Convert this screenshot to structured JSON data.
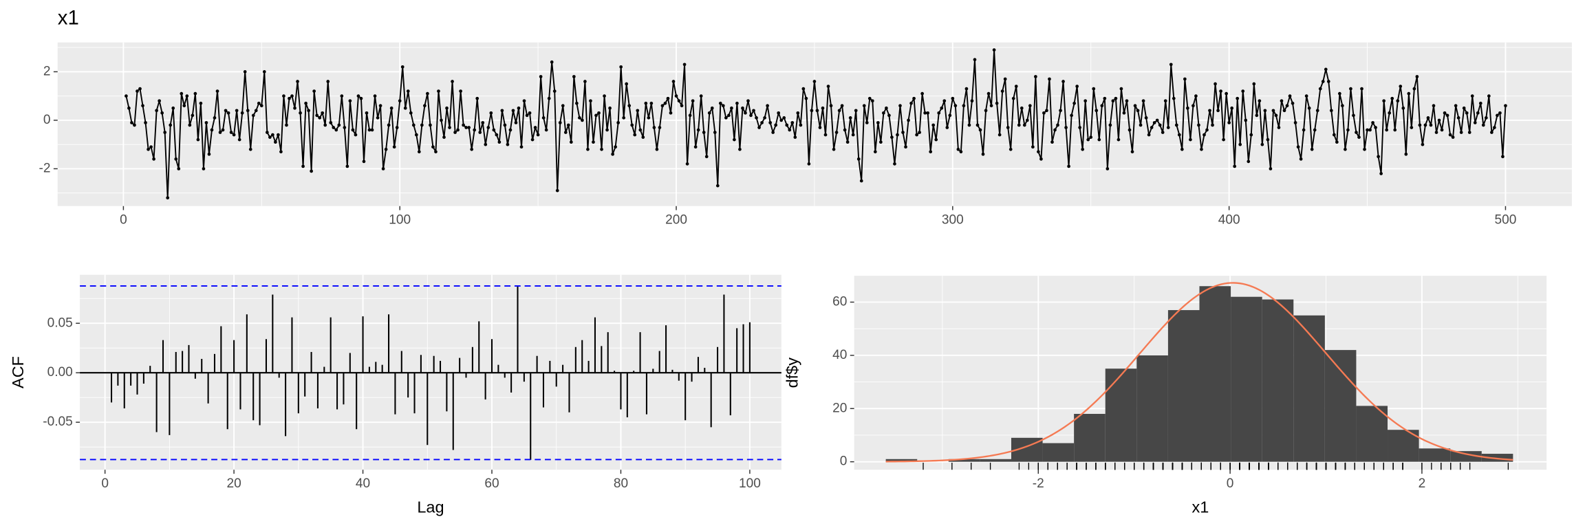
{
  "chart_data": [
    {
      "type": "line",
      "title": "x1",
      "color": "#000000",
      "panel_color": "#ebebeb",
      "grid": true,
      "x": [
        1,
        2,
        3,
        4,
        5,
        6,
        7,
        8,
        9,
        10,
        11,
        12,
        13,
        14,
        15,
        16,
        17,
        18,
        19,
        20,
        21,
        22,
        23,
        24,
        25,
        26,
        27,
        28,
        29,
        30,
        31,
        32,
        33,
        34,
        35,
        36,
        37,
        38,
        39,
        40,
        41,
        42,
        43,
        44,
        45,
        46,
        47,
        48,
        49,
        50,
        51,
        52,
        53,
        54,
        55,
        56,
        57,
        58,
        59,
        60,
        61,
        62,
        63,
        64,
        65,
        66,
        67,
        68,
        69,
        70,
        71,
        72,
        73,
        74,
        75,
        76,
        77,
        78,
        79,
        80,
        81,
        82,
        83,
        84,
        85,
        86,
        87,
        88,
        89,
        90,
        91,
        92,
        93,
        94,
        95,
        96,
        97,
        98,
        99,
        100,
        101,
        102,
        103,
        104,
        105,
        106,
        107,
        108,
        109,
        110,
        111,
        112,
        113,
        114,
        115,
        116,
        117,
        118,
        119,
        120,
        121,
        122,
        123,
        124,
        125,
        126,
        127,
        128,
        129,
        130,
        131,
        132,
        133,
        134,
        135,
        136,
        137,
        138,
        139,
        140,
        141,
        142,
        143,
        144,
        145,
        146,
        147,
        148,
        149,
        150,
        151,
        152,
        153,
        154,
        155,
        156,
        157,
        158,
        159,
        160,
        161,
        162,
        163,
        164,
        165,
        166,
        167,
        168,
        169,
        170,
        171,
        172,
        173,
        174,
        175,
        176,
        177,
        178,
        179,
        180,
        181,
        182,
        183,
        184,
        185,
        186,
        187,
        188,
        189,
        190,
        191,
        192,
        193,
        194,
        195,
        196,
        197,
        198,
        199,
        200,
        201,
        202,
        203,
        204,
        205,
        206,
        207,
        208,
        209,
        210,
        211,
        212,
        213,
        214,
        215,
        216,
        217,
        218,
        219,
        220,
        221,
        222,
        223,
        224,
        225,
        226,
        227,
        228,
        229,
        230,
        231,
        232,
        233,
        234,
        235,
        236,
        237,
        238,
        239,
        240,
        241,
        242,
        243,
        244,
        245,
        246,
        247,
        248,
        249,
        250,
        251,
        252,
        253,
        254,
        255,
        256,
        257,
        258,
        259,
        260,
        261,
        262,
        263,
        264,
        265,
        266,
        267,
        268,
        269,
        270,
        271,
        272,
        273,
        274,
        275,
        276,
        277,
        278,
        279,
        280,
        281,
        282,
        283,
        284,
        285,
        286,
        287,
        288,
        289,
        290,
        291,
        292,
        293,
        294,
        295,
        296,
        297,
        298,
        299,
        300,
        301,
        302,
        303,
        304,
        305,
        306,
        307,
        308,
        309,
        310,
        311,
        312,
        313,
        314,
        315,
        316,
        317,
        318,
        319,
        320,
        321,
        322,
        323,
        324,
        325,
        326,
        327,
        328,
        329,
        330,
        331,
        332,
        333,
        334,
        335,
        336,
        337,
        338,
        339,
        340,
        341,
        342,
        343,
        344,
        345,
        346,
        347,
        348,
        349,
        350,
        351,
        352,
        353,
        354,
        355,
        356,
        357,
        358,
        359,
        360,
        361,
        362,
        363,
        364,
        365,
        366,
        367,
        368,
        369,
        370,
        371,
        372,
        373,
        374,
        375,
        376,
        377,
        378,
        379,
        380,
        381,
        382,
        383,
        384,
        385,
        386,
        387,
        388,
        389,
        390,
        391,
        392,
        393,
        394,
        395,
        396,
        397,
        398,
        399,
        400,
        401,
        402,
        403,
        404,
        405,
        406,
        407,
        408,
        409,
        410,
        411,
        412,
        413,
        414,
        415,
        416,
        417,
        418,
        419,
        420,
        421,
        422,
        423,
        424,
        425,
        426,
        427,
        428,
        429,
        430,
        431,
        432,
        433,
        434,
        435,
        436,
        437,
        438,
        439,
        440,
        441,
        442,
        443,
        444,
        445,
        446,
        447,
        448,
        449,
        450,
        451,
        452,
        453,
        454,
        455,
        456,
        457,
        458,
        459,
        460,
        461,
        462,
        463,
        464,
        465,
        466,
        467,
        468,
        469,
        470,
        471,
        472,
        473,
        474,
        475,
        476,
        477,
        478,
        479,
        480,
        481,
        482,
        483,
        484,
        485,
        486,
        487,
        488,
        489,
        490,
        491,
        492,
        493,
        494,
        495,
        496,
        497,
        498,
        499,
        500
      ],
      "values": [
        1.0,
        0.5,
        -0.1,
        -0.2,
        1.2,
        1.3,
        0.6,
        -0.1,
        -1.2,
        -1.1,
        -1.6,
        0.4,
        0.8,
        0.3,
        -0.5,
        -3.2,
        -0.2,
        0.5,
        -1.6,
        -2.0,
        1.1,
        0.6,
        1.0,
        -0.2,
        0.2,
        1.1,
        -0.8,
        0.7,
        -2.0,
        -0.1,
        -1.4,
        -0.4,
        0.1,
        1.2,
        -0.5,
        -0.4,
        0.4,
        0.3,
        -0.5,
        -0.6,
        0.4,
        -0.8,
        0.3,
        2.0,
        0.4,
        -1.2,
        0.2,
        0.4,
        0.7,
        0.6,
        2.0,
        -0.5,
        -0.7,
        -0.6,
        -0.9,
        -0.6,
        -1.3,
        1.0,
        -0.2,
        0.9,
        1.0,
        0.5,
        1.6,
        0.3,
        -1.9,
        0.7,
        0.4,
        -2.1,
        1.2,
        0.2,
        0.1,
        0.3,
        -0.2,
        1.6,
        -0.1,
        -0.3,
        -0.4,
        -0.2,
        1.0,
        -0.3,
        -1.9,
        0.8,
        -0.4,
        -0.6,
        1.0,
        0.9,
        -1.7,
        0.3,
        -0.4,
        -0.4,
        1.0,
        0.1,
        0.6,
        -2.0,
        -1.2,
        -0.2,
        0.5,
        -1.1,
        -0.3,
        0.8,
        2.2,
        0.5,
        1.2,
        0.3,
        -0.2,
        -0.6,
        -1.3,
        -0.2,
        0.6,
        1.1,
        -0.2,
        -1.1,
        -1.3,
        1.2,
        0.0,
        -0.7,
        0.5,
        -0.3,
        1.6,
        -0.5,
        -0.4,
        1.2,
        -0.2,
        -0.3,
        -0.3,
        -1.2,
        -0.4,
        0.9,
        -0.5,
        -0.1,
        -1.0,
        -0.3,
        0.3,
        -0.4,
        -0.6,
        -0.9,
        0.4,
        -0.2,
        -1.0,
        -0.4,
        0.4,
        -0.1,
        0.5,
        -1.1,
        0.8,
        0.2,
        0.3,
        -0.8,
        -0.3,
        -0.6,
        1.8,
        0.1,
        -0.4,
        0.9,
        2.4,
        1.2,
        -2.9,
        -0.1,
        0.6,
        -0.5,
        -0.2,
        -0.9,
        1.8,
        0.7,
        0.1,
        0.0,
        1.6,
        -1.2,
        0.8,
        -0.9,
        0.2,
        0.3,
        -1.2,
        1.0,
        -0.4,
        0.5,
        -1.4,
        -1.1,
        -0.1,
        2.2,
        0.1,
        1.5,
        0.6,
        -0.2,
        -0.6,
        0.4,
        -0.4,
        -0.7,
        0.7,
        0.1,
        0.7,
        -0.3,
        -1.2,
        -0.3,
        0.6,
        0.7,
        0.9,
        0.3,
        1.6,
        1.0,
        0.8,
        0.6,
        2.3,
        -1.8,
        0.2,
        0.8,
        -1.1,
        -0.4,
        1.0,
        -0.5,
        -1.5,
        0.3,
        0.5,
        -0.5,
        -2.7,
        0.7,
        0.6,
        0.1,
        0.2,
        0.5,
        -0.8,
        0.7,
        -1.2,
        0.5,
        0.3,
        0.8,
        0.2,
        0.4,
        0.1,
        -0.3,
        -0.1,
        0.1,
        0.6,
        -0.1,
        -0.5,
        -0.2,
        0.3,
        0.0,
        0.1,
        -0.2,
        -0.4,
        -0.1,
        -0.7,
        0.3,
        -0.2,
        1.3,
        0.9,
        -1.8,
        0.4,
        1.6,
        0.4,
        -0.3,
        0.5,
        -0.6,
        1.4,
        0.6,
        -1.2,
        -0.5,
        0.4,
        0.6,
        -0.4,
        -0.9,
        0.1,
        -0.6,
        0.4,
        -1.6,
        -2.5,
        0.6,
        -0.1,
        0.9,
        0.8,
        -1.3,
        -0.1,
        -0.9,
        0.3,
        0.5,
        0.2,
        -0.7,
        -1.8,
        -0.6,
        0.6,
        -0.5,
        -1.1,
        0.0,
        0.7,
        0.9,
        -0.6,
        -0.5,
        1.1,
        0.3,
        0.3,
        -1.3,
        -0.2,
        -0.8,
        0.3,
        0.5,
        0.8,
        -0.3,
        0.2,
        0.9,
        0.6,
        -1.2,
        -1.3,
        0.6,
        1.3,
        -0.2,
        0.8,
        2.5,
        -0.2,
        -0.4,
        -1.4,
        0.4,
        1.1,
        0.6,
        2.9,
        0.7,
        -0.6,
        1.2,
        1.7,
        -0.3,
        -1.2,
        0.9,
        1.4,
        -0.2,
        0.5,
        -0.2,
        0.0,
        0.6,
        -1.1,
        1.8,
        -1.3,
        -1.6,
        0.3,
        0.4,
        1.7,
        -0.9,
        -0.4,
        -0.2,
        0.4,
        1.6,
        -0.3,
        -1.9,
        0.2,
        0.7,
        1.4,
        -0.3,
        -1.2,
        0.8,
        -0.8,
        -0.7,
        1.3,
        0.4,
        -0.8,
        0.6,
        0.9,
        -2.0,
        -0.2,
        0.8,
        0.9,
        -0.8,
        1.3,
        0.3,
        0.8,
        -0.4,
        -1.3,
        0.6,
        0.4,
        -0.2,
        0.8,
        0.1,
        -0.6,
        -0.3,
        -0.1,
        0.0,
        -0.2,
        -0.5,
        0.8,
        -0.3,
        2.3,
        0.9,
        -0.2,
        -0.6,
        -1.2,
        1.7,
        0.5,
        -0.8,
        0.6,
        1.0,
        -0.2,
        -1.2,
        -0.6,
        -0.4,
        0.4,
        -0.2,
        1.5,
        0.4,
        1.2,
        -0.8,
        1.1,
        -0.1,
        0.5,
        -1.9,
        0.9,
        -1.0,
        1.2,
        0.0,
        -1.7,
        -0.6,
        1.5,
        0.2,
        0.8,
        -1.0,
        0.4,
        -0.8,
        -2.0,
        0.4,
        0.2,
        -0.3,
        0.8,
        0.4,
        0.6,
        1.0,
        0.7,
        -0.1,
        -1.1,
        -1.6,
        -0.4,
        1.0,
        0.5,
        -1.2,
        -0.4,
        0.4,
        1.3,
        1.6,
        2.1,
        1.6,
        0.4,
        -0.6,
        -0.9,
        1.1,
        0.6,
        -1.2,
        -0.4,
        1.3,
        0.2,
        -0.5,
        -0.7,
        1.3,
        -1.2,
        -0.4,
        -0.4,
        -0.1,
        -0.3,
        -1.5,
        -2.2,
        0.8,
        -0.4,
        0.3,
        0.9,
        -0.4,
        0.8,
        1.4,
        0.5,
        -1.4,
        1.1,
        -0.3,
        1.3,
        1.8,
        -0.2,
        -1.0,
        -0.2,
        0.1,
        -0.2,
        0.6,
        -0.5,
        0.0,
        -0.4,
        0.3,
        0.2,
        -0.6,
        -0.7,
        0.6,
        0.1,
        -0.5,
        0.5,
        0.3,
        -0.5,
        1.0,
        -0.1,
        0.3,
        0.7,
        -0.2,
        0.1,
        1.0,
        -0.5,
        -0.3,
        0.2,
        0.3,
        -1.5,
        0.6
      ],
      "xlim": [
        -23.8,
        524
      ],
      "ylim": [
        -3.54,
        3.21
      ],
      "xticks": [
        0,
        100,
        200,
        300,
        400,
        500
      ],
      "yticks": [
        -2,
        0,
        2
      ],
      "x_minor_ticks": [
        50,
        150,
        250,
        350,
        450
      ],
      "y_minor_ticks": [
        -3,
        -1,
        1,
        3
      ]
    },
    {
      "type": "bar",
      "xlabel": "Lag",
      "ylabel": "ACF",
      "color": "#000000",
      "panel_color": "#ebebeb",
      "grid": true,
      "x": [
        1,
        2,
        3,
        4,
        5,
        6,
        7,
        8,
        9,
        10,
        11,
        12,
        13,
        14,
        15,
        16,
        17,
        18,
        19,
        20,
        21,
        22,
        23,
        24,
        25,
        26,
        27,
        28,
        29,
        30,
        31,
        32,
        33,
        34,
        35,
        36,
        37,
        38,
        39,
        40,
        41,
        42,
        43,
        44,
        45,
        46,
        47,
        48,
        49,
        50,
        51,
        52,
        53,
        54,
        55,
        56,
        57,
        58,
        59,
        60,
        61,
        62,
        63,
        64,
        65,
        66,
        67,
        68,
        69,
        70,
        71,
        72,
        73,
        74,
        75,
        76,
        77,
        78,
        79,
        80,
        81,
        82,
        83,
        84,
        85,
        86,
        87,
        88,
        89,
        90,
        91,
        92,
        93,
        94,
        95,
        96,
        97,
        98,
        99,
        100
      ],
      "values": [
        -0.03,
        -0.013,
        -0.036,
        -0.013,
        -0.022,
        -0.011,
        0.007,
        -0.06,
        0.033,
        -0.063,
        0.021,
        0.022,
        0.028,
        -0.006,
        0.014,
        -0.031,
        0.019,
        0.047,
        -0.057,
        0.033,
        -0.037,
        0.059,
        -0.048,
        -0.053,
        0.034,
        0.079,
        -0.005,
        -0.064,
        0.056,
        -0.041,
        -0.024,
        0.021,
        -0.036,
        0.006,
        0.056,
        -0.037,
        -0.032,
        0.02,
        -0.057,
        0.057,
        0.006,
        0.011,
        0.008,
        0.059,
        -0.042,
        0.022,
        -0.025,
        -0.041,
        0.018,
        -0.073,
        0.017,
        0.012,
        -0.039,
        -0.078,
        0.015,
        -0.005,
        0.026,
        0.052,
        -0.027,
        0.034,
        0.008,
        -0.005,
        -0.02,
        0.088,
        -0.009,
        -0.088,
        0.017,
        -0.035,
        0.012,
        -0.014,
        0.008,
        -0.04,
        0.026,
        0.033,
        0.012,
        0.056,
        0.027,
        0.041,
        0.002,
        -0.037,
        -0.045,
        0.002,
        0.041,
        -0.042,
        0.004,
        0.022,
        0.048,
        0.003,
        -0.008,
        -0.048,
        -0.009,
        0.016,
        0.005,
        -0.055,
        0.026,
        0.079,
        -0.043,
        0.045,
        0.049,
        0.051
      ],
      "ci_lines": [
        0.0877,
        -0.0877
      ],
      "ci_color": "#0000ff",
      "xlim": [
        -3.9,
        104.9
      ],
      "ylim": [
        -0.098,
        0.099
      ],
      "xticks": [
        0,
        20,
        40,
        60,
        80,
        100
      ],
      "yticks": [
        {
          "value": -0.05,
          "label": "-0.05"
        },
        {
          "value": 0,
          "label": "0.00"
        },
        {
          "value": 0.05,
          "label": "0.05"
        }
      ],
      "x_minor_ticks": [
        10,
        30,
        50,
        70,
        90
      ],
      "y_minor_ticks": [
        -0.075,
        -0.025,
        0.025,
        0.075
      ]
    },
    {
      "type": "histogram",
      "xlabel": "x1",
      "ylabel": "df$y",
      "color": "#474747",
      "panel_color": "#ebebeb",
      "grid": true,
      "bins": [
        -3.59,
        -3.263,
        -2.936,
        -2.609,
        -2.282,
        -1.955,
        -1.628,
        -1.301,
        -0.974,
        -0.647,
        -0.32,
        0.007,
        0.334,
        0.661,
        0.988,
        1.315,
        1.642,
        1.969,
        2.296,
        2.623,
        2.95
      ],
      "values": [
        1,
        0,
        1,
        1,
        9,
        7,
        18,
        35,
        40,
        57,
        66,
        62,
        61,
        55,
        42,
        21,
        12,
        5,
        4,
        3
      ],
      "normal_curve": {
        "mean": 0.03,
        "sd": 0.97,
        "color": "#f57a53"
      },
      "rug": true,
      "xlim": [
        -3.92,
        3.3
      ],
      "ylim": [
        -3.0,
        69.9
      ],
      "xticks": [
        -2,
        0,
        2
      ],
      "yticks": [
        0,
        20,
        40,
        60
      ],
      "x_minor_ticks": [
        -3,
        -1,
        1,
        3
      ],
      "y_minor_ticks": [
        10,
        30,
        50
      ]
    }
  ]
}
